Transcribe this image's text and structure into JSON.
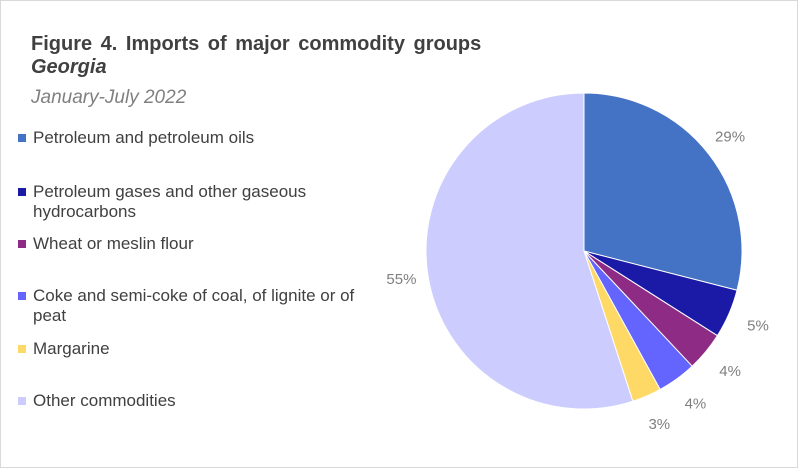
{
  "chart_data": {
    "type": "pie",
    "title": "Figure 4. Imports of major commodity groups",
    "subtitle": "Georgia",
    "period": "January-July 2022",
    "categories": [
      "Petroleum and petroleum oils",
      "Petroleum gases and other gaseous hydrocarbons",
      "Wheat or meslin flour",
      "Coke and semi-coke of coal, of lignite or of peat",
      "Margarine",
      "Other commodities"
    ],
    "values": [
      29,
      5,
      4,
      4,
      3,
      55
    ],
    "value_labels": [
      "29%",
      "5%",
      "4%",
      "4%",
      "3%",
      "55%"
    ],
    "colors": [
      "#4472c4",
      "#1a1aa6",
      "#8e2b85",
      "#6464ff",
      "#ffd966",
      "#ccccff"
    ]
  }
}
